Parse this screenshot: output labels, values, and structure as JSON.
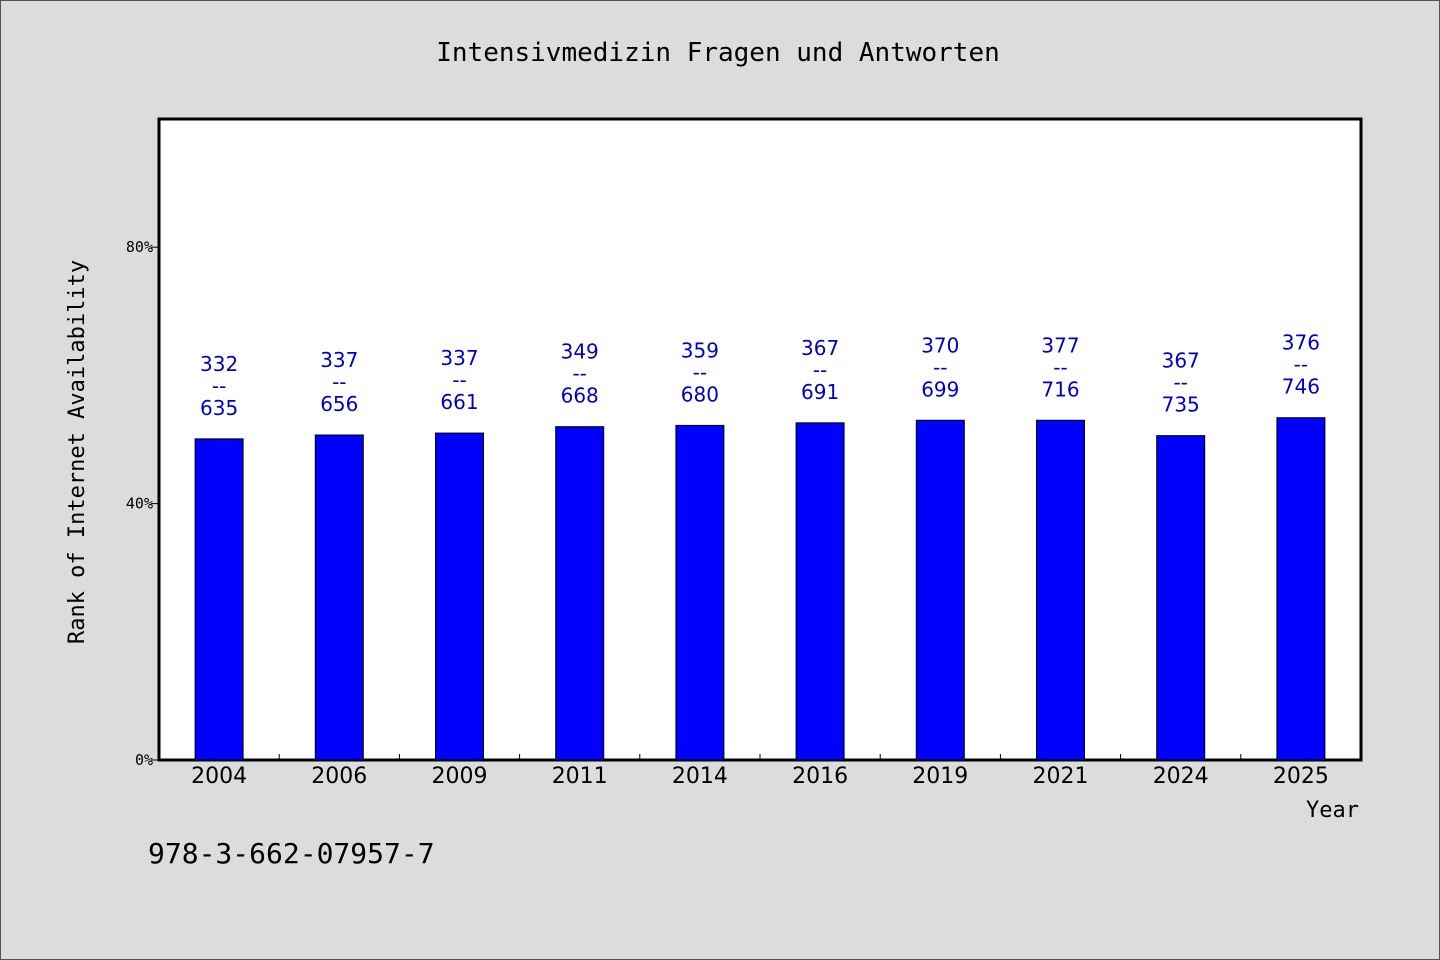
{
  "page": {
    "isbn": "978-3-662-07957-7"
  },
  "colors": {
    "bar": "#0000ff",
    "label": "#0000cc",
    "background": "#dcdcdc",
    "plot": "#ffffff"
  },
  "chart_data": {
    "type": "bar",
    "title": "Intensivmedizin Fragen und Antworten",
    "xlabel": "Year",
    "ylabel": "Rank of Internet Availability",
    "ylim": [
      0,
      100
    ],
    "yticks": [
      {
        "value": 0,
        "label": "0%"
      },
      {
        "value": 40,
        "label": "40%"
      },
      {
        "value": 80,
        "label": "80%"
      }
    ],
    "grid": false,
    "categories": [
      "2004",
      "2006",
      "2009",
      "2011",
      "2014",
      "2016",
      "2019",
      "2021",
      "2024",
      "2025"
    ],
    "values": [
      50.1,
      50.7,
      51.0,
      52.0,
      52.2,
      52.6,
      53.0,
      53.0,
      50.6,
      53.4
    ],
    "labels": [
      {
        "top": "332",
        "sep": "--",
        "bottom": "635"
      },
      {
        "top": "337",
        "sep": "--",
        "bottom": "656"
      },
      {
        "top": "337",
        "sep": "--",
        "bottom": "661"
      },
      {
        "top": "349",
        "sep": "--",
        "bottom": "668"
      },
      {
        "top": "359",
        "sep": "--",
        "bottom": "680"
      },
      {
        "top": "367",
        "sep": "--",
        "bottom": "691"
      },
      {
        "top": "370",
        "sep": "--",
        "bottom": "699"
      },
      {
        "top": "377",
        "sep": "--",
        "bottom": "716"
      },
      {
        "top": "367",
        "sep": "--",
        "bottom": "735"
      },
      {
        "top": "376",
        "sep": "--",
        "bottom": "746"
      }
    ]
  }
}
